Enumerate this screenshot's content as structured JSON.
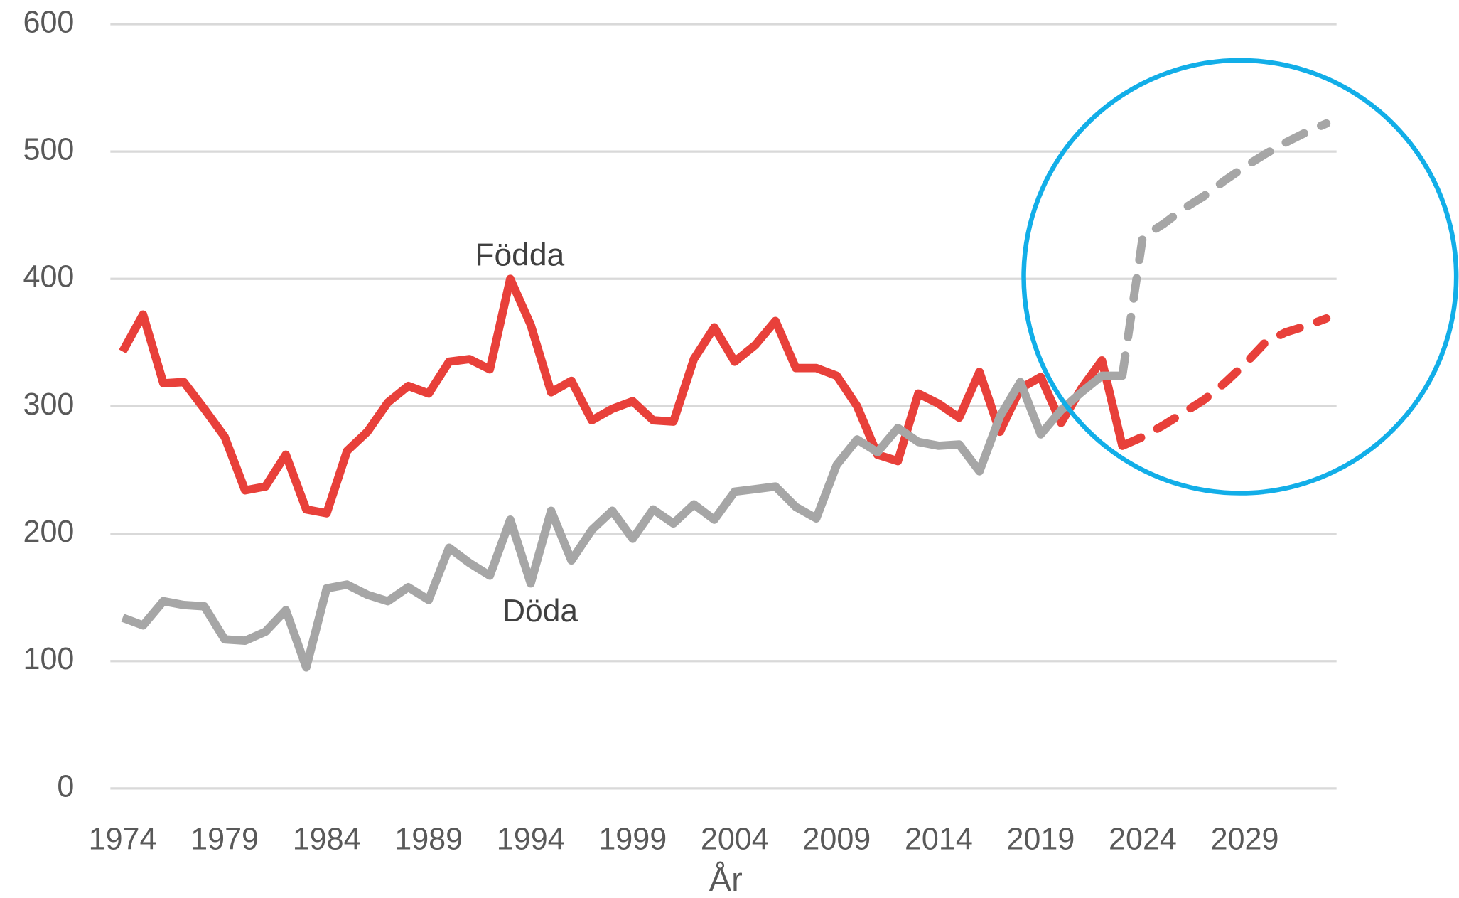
{
  "chart_data": {
    "type": "line",
    "x_label": "År",
    "x": [
      1974,
      1975,
      1976,
      1977,
      1978,
      1979,
      1980,
      1981,
      1982,
      1983,
      1984,
      1985,
      1986,
      1987,
      1988,
      1989,
      1990,
      1991,
      1992,
      1993,
      1994,
      1995,
      1996,
      1997,
      1998,
      1999,
      2000,
      2001,
      2002,
      2003,
      2004,
      2005,
      2006,
      2007,
      2008,
      2009,
      2010,
      2011,
      2012,
      2013,
      2014,
      2015,
      2016,
      2017,
      2018,
      2019,
      2020,
      2021,
      2022,
      2023,
      2024,
      2025,
      2026,
      2027,
      2028,
      2029,
      2030,
      2031,
      2032,
      2033
    ],
    "xlim": [
      1973.4,
      2033.5
    ],
    "xticks": [
      1974,
      1979,
      1984,
      1989,
      1994,
      1999,
      2004,
      2009,
      2014,
      2019,
      2024,
      2029
    ],
    "ylim": [
      0,
      600
    ],
    "yticks": [
      0,
      100,
      200,
      300,
      400,
      500,
      600
    ],
    "grid": true,
    "series": [
      {
        "color": "#e8403a",
        "dashed": false,
        "values": [
          343,
          372,
          318,
          319,
          298,
          276,
          234,
          237,
          262,
          219,
          216,
          265,
          280,
          303,
          316,
          310,
          335,
          337,
          329,
          400,
          364,
          311,
          320,
          289,
          298,
          304,
          289,
          288,
          337,
          362,
          335,
          348,
          367,
          330,
          330,
          324,
          300,
          262,
          257,
          310,
          302,
          291,
          327,
          280,
          314,
          323,
          287,
          314,
          336,
          269,
          null,
          null,
          null,
          null,
          null,
          null,
          null,
          null,
          null,
          null
        ]
      },
      {
        "color": "#e8403a",
        "dashed": true,
        "values": [
          null,
          null,
          null,
          null,
          null,
          null,
          null,
          null,
          null,
          null,
          null,
          null,
          null,
          null,
          null,
          null,
          null,
          null,
          null,
          null,
          null,
          null,
          null,
          null,
          null,
          null,
          null,
          null,
          null,
          null,
          null,
          null,
          null,
          null,
          null,
          null,
          null,
          null,
          null,
          null,
          null,
          null,
          null,
          null,
          null,
          null,
          null,
          null,
          null,
          269,
          276,
          285,
          295,
          305,
          318,
          333,
          350,
          358,
          363,
          369
        ]
      },
      {
        "color": "#a6a6a6",
        "dashed": false,
        "values": [
          134,
          128,
          147,
          144,
          143,
          117,
          116,
          123,
          140,
          95,
          157,
          160,
          152,
          147,
          158,
          148,
          189,
          177,
          167,
          211,
          161,
          218,
          179,
          203,
          218,
          196,
          219,
          208,
          223,
          211,
          233,
          235,
          237,
          221,
          212,
          254,
          274,
          264,
          283,
          272,
          269,
          270,
          249,
          292,
          319,
          278,
          297,
          311,
          324,
          324,
          null,
          null,
          null,
          null,
          null,
          null,
          null,
          null,
          null,
          null
        ]
      },
      {
        "color": "#a6a6a6",
        "dashed": true,
        "values": [
          null,
          null,
          null,
          null,
          null,
          null,
          null,
          null,
          null,
          null,
          null,
          null,
          null,
          null,
          null,
          null,
          null,
          null,
          null,
          null,
          null,
          null,
          null,
          null,
          null,
          null,
          null,
          null,
          null,
          null,
          null,
          null,
          null,
          null,
          null,
          null,
          null,
          null,
          null,
          null,
          null,
          null,
          null,
          null,
          null,
          null,
          null,
          null,
          null,
          324,
          433,
          443,
          455,
          465,
          477,
          488,
          498,
          507,
          515,
          522
        ]
      }
    ],
    "annotations": [
      {
        "text": "Födda"
      },
      {
        "text": "Döda"
      }
    ]
  }
}
